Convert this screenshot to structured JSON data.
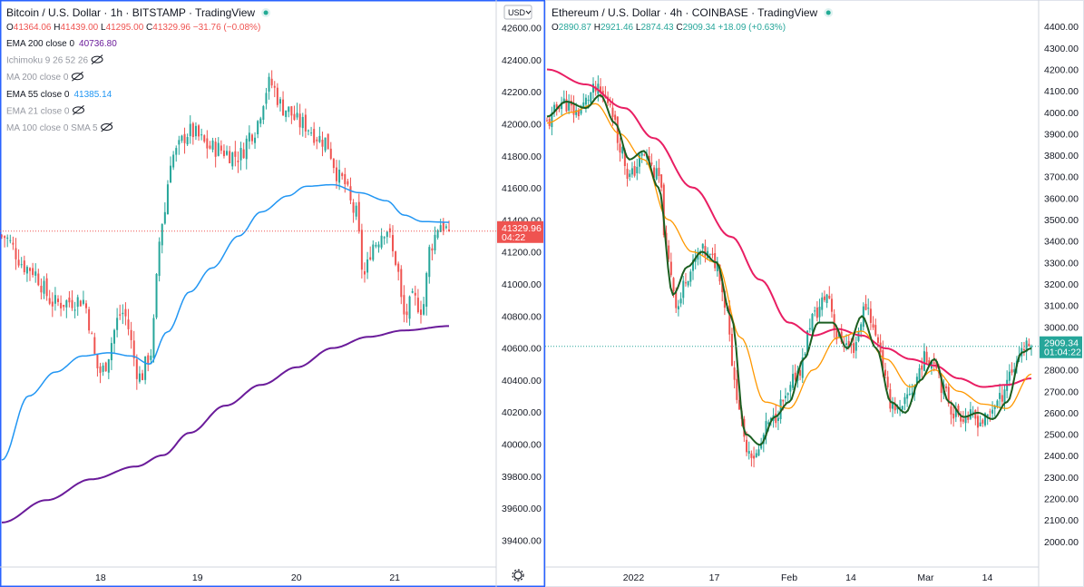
{
  "left_chart": {
    "title": "Bitcoin / U.S. Dollar · 1h · BITSTAMP · TradingView",
    "ohlc": {
      "o_label": "O",
      "o": "41364.06",
      "h_label": "H",
      "h": "41439.00",
      "l_label": "L",
      "l": "41295.00",
      "c_label": "C",
      "c": "41329.96",
      "change": "−31.76 (−0.08%)"
    },
    "indicators": [
      {
        "label": "EMA 200 close 0",
        "value": "40736.80",
        "hidden": false
      },
      {
        "label": "Ichimoku 9 26 52 26",
        "value": "",
        "hidden": true
      },
      {
        "label": "MA 200 close 0",
        "value": "",
        "hidden": true
      },
      {
        "label": "EMA 55 close 0",
        "value": "41385.14",
        "hidden": false
      },
      {
        "label": "EMA 21 close 0",
        "value": "",
        "hidden": true
      },
      {
        "label": "MA 100 close 0 SMA 5",
        "value": "",
        "hidden": true
      }
    ],
    "currency_button": "USD",
    "price_tag": "41329.96",
    "countdown": "04:22",
    "colors": {
      "up": "#26a69a",
      "down": "#ef5350",
      "ema55": "#2196f3",
      "ema200": "#6a1b9a",
      "frame": "#2962ff"
    }
  },
  "right_chart": {
    "title": "Ethereum / U.S. Dollar · 4h · COINBASE · TradingView",
    "ohlc": {
      "o_label": "O",
      "o": "2890.87",
      "h_label": "H",
      "h": "2921.46",
      "l_label": "L",
      "l": "2874.43",
      "c_label": "C",
      "c": "2909.34",
      "change": "+18.09 (+0.63%)"
    },
    "price_tag": "2909.34",
    "countdown": "01:04:22",
    "colors": {
      "up": "#26a69a",
      "down": "#ef5350",
      "ma_slow": "#e91e63",
      "ema_mid": "#ff9800",
      "ema_fast": "#1b5e20"
    }
  },
  "chart_data": [
    {
      "type": "candlestick",
      "title": "Bitcoin / U.S. Dollar · 1h · BITSTAMP",
      "y_ticks": [
        39400,
        39600,
        39800,
        40000,
        40200,
        40400,
        40600,
        40800,
        41000,
        41200,
        41400,
        41600,
        41800,
        42000,
        42200,
        42400,
        42600
      ],
      "y_tick_labels": [
        "39400.00",
        "39600.00",
        "39800.00",
        "40000.00",
        "40200.00",
        "40400.00",
        "40600.00",
        "40800.00",
        "41000.00",
        "41200.00",
        "41400.00",
        "41600.00",
        "41800.00",
        "42000.00",
        "42200.00",
        "42400.00",
        "42600.00"
      ],
      "ylim": [
        39300,
        42700
      ],
      "x_ticks": [
        {
          "label": "18",
          "t": 0.2208
        },
        {
          "label": "19",
          "t": 0.4376
        },
        {
          "label": "20",
          "t": 0.6587
        },
        {
          "label": "21",
          "t": 0.8787
        }
      ],
      "last_close": 41329.96,
      "key_closes": [
        {
          "t": 0.0,
          "close": 41300
        },
        {
          "t": 0.06,
          "close": 41100
        },
        {
          "t": 0.12,
          "close": 40880
        },
        {
          "t": 0.18,
          "close": 40900
        },
        {
          "t": 0.22,
          "close": 40450
        },
        {
          "t": 0.27,
          "close": 40820
        },
        {
          "t": 0.31,
          "close": 40420
        },
        {
          "t": 0.33,
          "close": 40550
        },
        {
          "t": 0.36,
          "close": 41400
        },
        {
          "t": 0.38,
          "close": 41800
        },
        {
          "t": 0.42,
          "close": 41950
        },
        {
          "t": 0.47,
          "close": 41850
        },
        {
          "t": 0.53,
          "close": 41800
        },
        {
          "t": 0.56,
          "close": 41950
        },
        {
          "t": 0.6,
          "close": 42250
        },
        {
          "t": 0.63,
          "close": 42100
        },
        {
          "t": 0.67,
          "close": 42000
        },
        {
          "t": 0.72,
          "close": 41900
        },
        {
          "t": 0.76,
          "close": 41650
        },
        {
          "t": 0.79,
          "close": 41450
        },
        {
          "t": 0.81,
          "close": 41050
        },
        {
          "t": 0.83,
          "close": 41250
        },
        {
          "t": 0.86,
          "close": 41350
        },
        {
          "t": 0.88,
          "close": 41150
        },
        {
          "t": 0.9,
          "close": 40800
        },
        {
          "t": 0.92,
          "close": 40900
        },
        {
          "t": 0.94,
          "close": 40850
        },
        {
          "t": 0.96,
          "close": 41250
        },
        {
          "t": 0.98,
          "close": 41380
        },
        {
          "t": 1.0,
          "close": 41330
        }
      ],
      "series": [
        {
          "name": "EMA 55 close 0",
          "last": 41385.14,
          "points": [
            [
              0.0,
              39900
            ],
            [
              0.06,
              40300
            ],
            [
              0.12,
              40450
            ],
            [
              0.18,
              40550
            ],
            [
              0.24,
              40570
            ],
            [
              0.29,
              40550
            ],
            [
              0.33,
              40500
            ],
            [
              0.37,
              40700
            ],
            [
              0.42,
              40950
            ],
            [
              0.47,
              41100
            ],
            [
              0.53,
              41300
            ],
            [
              0.58,
              41450
            ],
            [
              0.64,
              41550
            ],
            [
              0.68,
              41610
            ],
            [
              0.74,
              41620
            ],
            [
              0.8,
              41570
            ],
            [
              0.86,
              41520
            ],
            [
              0.9,
              41430
            ],
            [
              0.94,
              41390
            ],
            [
              1.0,
              41385
            ]
          ]
        },
        {
          "name": "EMA 200 close 0",
          "last": 40736.8,
          "points": [
            [
              0.0,
              39510
            ],
            [
              0.1,
              39650
            ],
            [
              0.2,
              39780
            ],
            [
              0.3,
              39860
            ],
            [
              0.36,
              39930
            ],
            [
              0.42,
              40070
            ],
            [
              0.5,
              40240
            ],
            [
              0.58,
              40370
            ],
            [
              0.66,
              40480
            ],
            [
              0.74,
              40600
            ],
            [
              0.82,
              40670
            ],
            [
              0.9,
              40710
            ],
            [
              1.0,
              40737
            ]
          ]
        }
      ]
    },
    {
      "type": "candlestick",
      "title": "Ethereum / U.S. Dollar · 4h · COINBASE",
      "y_ticks": [
        2000,
        2100,
        2200,
        2300,
        2400,
        2500,
        2600,
        2700,
        2800,
        2900,
        3000,
        3100,
        3200,
        3300,
        3400,
        3500,
        3600,
        3700,
        3800,
        3900,
        4000,
        4100,
        4200,
        4300,
        4400
      ],
      "y_tick_labels": [
        "2000.00",
        "2100.00",
        "2200.00",
        "2300.00",
        "2400.00",
        "2500.00",
        "2600.00",
        "2700.00",
        "2800.00",
        "2900.00",
        "3000.00",
        "3100.00",
        "3200.00",
        "3300.00",
        "3400.00",
        "3500.00",
        "3600.00",
        "3700.00",
        "3800.00",
        "3900.00",
        "4000.00",
        "4100.00",
        "4200.00",
        "4300.00",
        "4400.00"
      ],
      "ylim": [
        1940,
        4460
      ],
      "x_ticks": [
        {
          "label": "2022",
          "t": 0.1788
        },
        {
          "label": "17",
          "t": 0.3455
        },
        {
          "label": "Feb",
          "t": 0.5
        },
        {
          "label": "14",
          "t": 0.6273
        },
        {
          "label": "Mar",
          "t": 0.7818
        },
        {
          "label": "14",
          "t": 0.9091
        }
      ],
      "last_close": 2909.34,
      "key_closes": [
        {
          "t": 0.0,
          "close": 3950
        },
        {
          "t": 0.03,
          "close": 4050
        },
        {
          "t": 0.06,
          "close": 4000
        },
        {
          "t": 0.1,
          "close": 4100
        },
        {
          "t": 0.13,
          "close": 4050
        },
        {
          "t": 0.15,
          "close": 3850
        },
        {
          "t": 0.17,
          "close": 3700
        },
        {
          "t": 0.2,
          "close": 3800
        },
        {
          "t": 0.23,
          "close": 3700
        },
        {
          "t": 0.25,
          "close": 3300
        },
        {
          "t": 0.27,
          "close": 3100
        },
        {
          "t": 0.29,
          "close": 3250
        },
        {
          "t": 0.32,
          "close": 3350
        },
        {
          "t": 0.35,
          "close": 3300
        },
        {
          "t": 0.37,
          "close": 3100
        },
        {
          "t": 0.39,
          "close": 2700
        },
        {
          "t": 0.41,
          "close": 2450
        },
        {
          "t": 0.43,
          "close": 2400
        },
        {
          "t": 0.46,
          "close": 2550
        },
        {
          "t": 0.49,
          "close": 2650
        },
        {
          "t": 0.52,
          "close": 2800
        },
        {
          "t": 0.55,
          "close": 3050
        },
        {
          "t": 0.58,
          "close": 3150
        },
        {
          "t": 0.6,
          "close": 2950
        },
        {
          "t": 0.63,
          "close": 2900
        },
        {
          "t": 0.66,
          "close": 3100
        },
        {
          "t": 0.68,
          "close": 2950
        },
        {
          "t": 0.71,
          "close": 2650
        },
        {
          "t": 0.73,
          "close": 2600
        },
        {
          "t": 0.75,
          "close": 2700
        },
        {
          "t": 0.78,
          "close": 2850
        },
        {
          "t": 0.8,
          "close": 2850
        },
        {
          "t": 0.82,
          "close": 2700
        },
        {
          "t": 0.84,
          "close": 2600
        },
        {
          "t": 0.87,
          "close": 2580
        },
        {
          "t": 0.9,
          "close": 2560
        },
        {
          "t": 0.93,
          "close": 2650
        },
        {
          "t": 0.96,
          "close": 2800
        },
        {
          "t": 0.98,
          "close": 2900
        },
        {
          "t": 1.0,
          "close": 2909
        }
      ],
      "series": [
        {
          "name": "",
          "color_key": "ma_slow",
          "points": [
            [
              0.0,
              4200
            ],
            [
              0.08,
              4130
            ],
            [
              0.16,
              4020
            ],
            [
              0.22,
              3880
            ],
            [
              0.3,
              3650
            ],
            [
              0.38,
              3420
            ],
            [
              0.44,
              3220
            ],
            [
              0.5,
              3020
            ],
            [
              0.55,
              2960
            ],
            [
              0.6,
              2990
            ],
            [
              0.65,
              2960
            ],
            [
              0.7,
              2900
            ],
            [
              0.75,
              2850
            ],
            [
              0.8,
              2820
            ],
            [
              0.85,
              2760
            ],
            [
              0.9,
              2720
            ],
            [
              0.95,
              2730
            ],
            [
              1.0,
              2760
            ]
          ]
        },
        {
          "name": "",
          "color_key": "ema_mid",
          "points": [
            [
              0.0,
              3950
            ],
            [
              0.05,
              4000
            ],
            [
              0.1,
              4040
            ],
            [
              0.15,
              3900
            ],
            [
              0.2,
              3780
            ],
            [
              0.25,
              3500
            ],
            [
              0.3,
              3350
            ],
            [
              0.35,
              3300
            ],
            [
              0.4,
              2950
            ],
            [
              0.45,
              2650
            ],
            [
              0.5,
              2620
            ],
            [
              0.55,
              2800
            ],
            [
              0.6,
              2950
            ],
            [
              0.65,
              2980
            ],
            [
              0.7,
              2850
            ],
            [
              0.75,
              2720
            ],
            [
              0.8,
              2800
            ],
            [
              0.85,
              2700
            ],
            [
              0.9,
              2640
            ],
            [
              0.95,
              2620
            ],
            [
              1.0,
              2780
            ]
          ]
        },
        {
          "name": "",
          "color_key": "ema_fast",
          "points": [
            [
              0.0,
              3980
            ],
            [
              0.04,
              4050
            ],
            [
              0.08,
              4020
            ],
            [
              0.11,
              4080
            ],
            [
              0.14,
              3950
            ],
            [
              0.17,
              3780
            ],
            [
              0.2,
              3820
            ],
            [
              0.23,
              3650
            ],
            [
              0.26,
              3150
            ],
            [
              0.29,
              3280
            ],
            [
              0.32,
              3350
            ],
            [
              0.35,
              3300
            ],
            [
              0.38,
              3050
            ],
            [
              0.41,
              2500
            ],
            [
              0.44,
              2450
            ],
            [
              0.47,
              2580
            ],
            [
              0.5,
              2650
            ],
            [
              0.53,
              2850
            ],
            [
              0.56,
              3020
            ],
            [
              0.59,
              3020
            ],
            [
              0.62,
              2900
            ],
            [
              0.65,
              3050
            ],
            [
              0.68,
              2900
            ],
            [
              0.71,
              2650
            ],
            [
              0.74,
              2600
            ],
            [
              0.77,
              2750
            ],
            [
              0.8,
              2850
            ],
            [
              0.83,
              2650
            ],
            [
              0.86,
              2580
            ],
            [
              0.89,
              2600
            ],
            [
              0.92,
              2570
            ],
            [
              0.95,
              2650
            ],
            [
              0.98,
              2880
            ],
            [
              1.0,
              2900
            ]
          ]
        }
      ]
    }
  ]
}
